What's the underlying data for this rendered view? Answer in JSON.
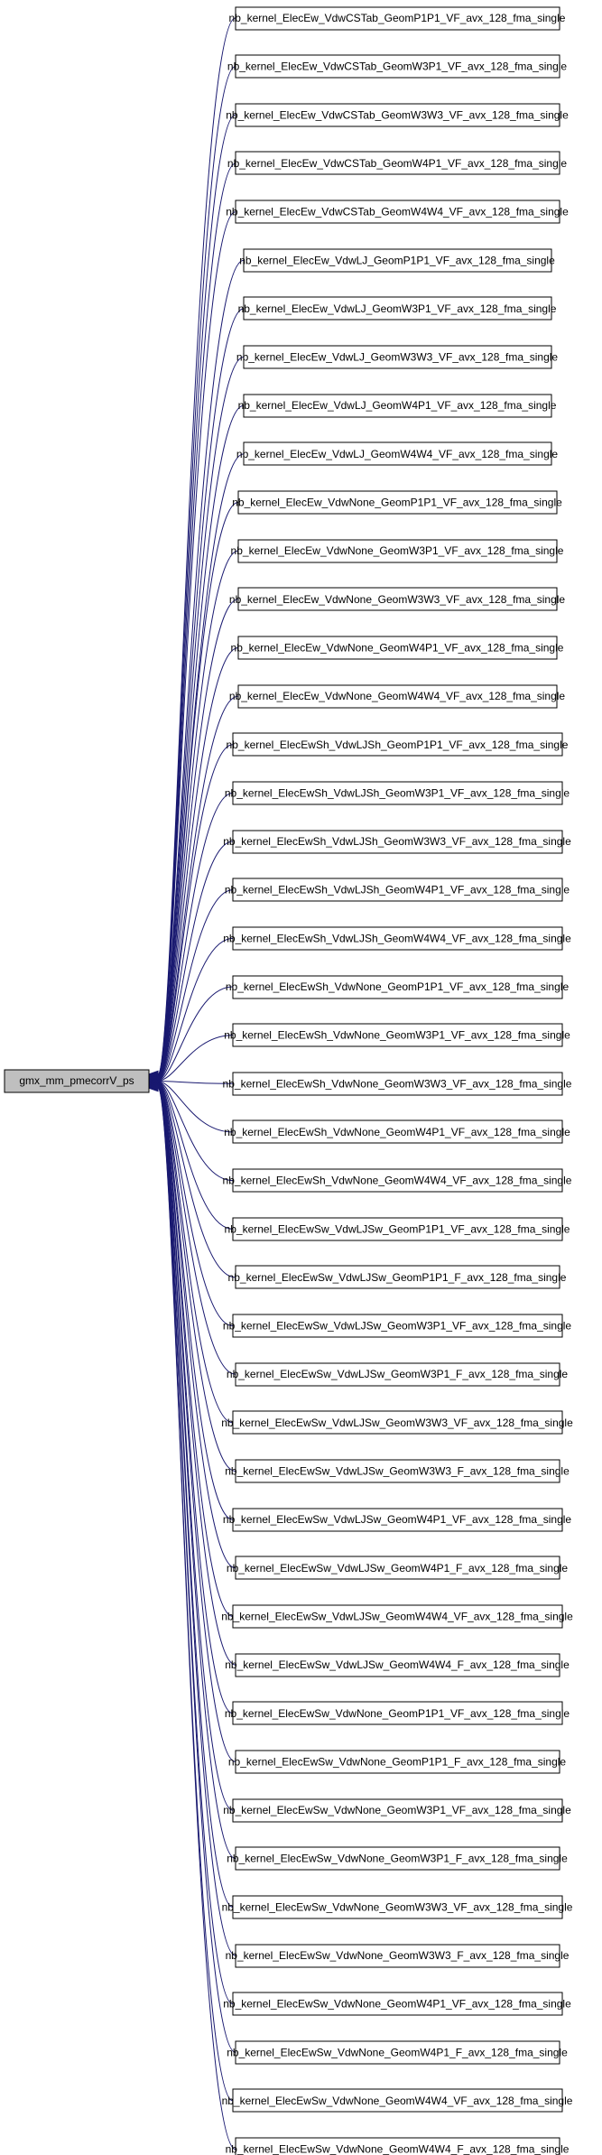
{
  "graph": {
    "root": {
      "label": "gmx_mm_pmecorrV_ps",
      "fill": "#bfbfbf"
    },
    "edge_color": "#191970",
    "callers": [
      "nb_kernel_ElecEw_VdwCSTab_GeomP1P1_VF_avx_128_fma_single",
      "nb_kernel_ElecEw_VdwCSTab_GeomW3P1_VF_avx_128_fma_single",
      "nb_kernel_ElecEw_VdwCSTab_GeomW3W3_VF_avx_128_fma_single",
      "nb_kernel_ElecEw_VdwCSTab_GeomW4P1_VF_avx_128_fma_single",
      "nb_kernel_ElecEw_VdwCSTab_GeomW4W4_VF_avx_128_fma_single",
      "nb_kernel_ElecEw_VdwLJ_GeomP1P1_VF_avx_128_fma_single",
      "nb_kernel_ElecEw_VdwLJ_GeomW3P1_VF_avx_128_fma_single",
      "nb_kernel_ElecEw_VdwLJ_GeomW3W3_VF_avx_128_fma_single",
      "nb_kernel_ElecEw_VdwLJ_GeomW4P1_VF_avx_128_fma_single",
      "nb_kernel_ElecEw_VdwLJ_GeomW4W4_VF_avx_128_fma_single",
      "nb_kernel_ElecEw_VdwNone_GeomP1P1_VF_avx_128_fma_single",
      "nb_kernel_ElecEw_VdwNone_GeomW3P1_VF_avx_128_fma_single",
      "nb_kernel_ElecEw_VdwNone_GeomW3W3_VF_avx_128_fma_single",
      "nb_kernel_ElecEw_VdwNone_GeomW4P1_VF_avx_128_fma_single",
      "nb_kernel_ElecEw_VdwNone_GeomW4W4_VF_avx_128_fma_single",
      "nb_kernel_ElecEwSh_VdwLJSh_GeomP1P1_VF_avx_128_fma_single",
      "nb_kernel_ElecEwSh_VdwLJSh_GeomW3P1_VF_avx_128_fma_single",
      "nb_kernel_ElecEwSh_VdwLJSh_GeomW3W3_VF_avx_128_fma_single",
      "nb_kernel_ElecEwSh_VdwLJSh_GeomW4P1_VF_avx_128_fma_single",
      "nb_kernel_ElecEwSh_VdwLJSh_GeomW4W4_VF_avx_128_fma_single",
      "nb_kernel_ElecEwSh_VdwNone_GeomP1P1_VF_avx_128_fma_single",
      "nb_kernel_ElecEwSh_VdwNone_GeomW3P1_VF_avx_128_fma_single",
      "nb_kernel_ElecEwSh_VdwNone_GeomW3W3_VF_avx_128_fma_single",
      "nb_kernel_ElecEwSh_VdwNone_GeomW4P1_VF_avx_128_fma_single",
      "nb_kernel_ElecEwSh_VdwNone_GeomW4W4_VF_avx_128_fma_single",
      "nb_kernel_ElecEwSw_VdwLJSw_GeomP1P1_VF_avx_128_fma_single",
      "nb_kernel_ElecEwSw_VdwLJSw_GeomP1P1_F_avx_128_fma_single",
      "nb_kernel_ElecEwSw_VdwLJSw_GeomW3P1_VF_avx_128_fma_single",
      "nb_kernel_ElecEwSw_VdwLJSw_GeomW3P1_F_avx_128_fma_single",
      "nb_kernel_ElecEwSw_VdwLJSw_GeomW3W3_VF_avx_128_fma_single",
      "nb_kernel_ElecEwSw_VdwLJSw_GeomW3W3_F_avx_128_fma_single",
      "nb_kernel_ElecEwSw_VdwLJSw_GeomW4P1_VF_avx_128_fma_single",
      "nb_kernel_ElecEwSw_VdwLJSw_GeomW4P1_F_avx_128_fma_single",
      "nb_kernel_ElecEwSw_VdwLJSw_GeomW4W4_VF_avx_128_fma_single",
      "nb_kernel_ElecEwSw_VdwLJSw_GeomW4W4_F_avx_128_fma_single",
      "nb_kernel_ElecEwSw_VdwNone_GeomP1P1_VF_avx_128_fma_single",
      "nb_kernel_ElecEwSw_VdwNone_GeomP1P1_F_avx_128_fma_single",
      "nb_kernel_ElecEwSw_VdwNone_GeomW3P1_VF_avx_128_fma_single",
      "nb_kernel_ElecEwSw_VdwNone_GeomW3P1_F_avx_128_fma_single",
      "nb_kernel_ElecEwSw_VdwNone_GeomW3W3_VF_avx_128_fma_single",
      "nb_kernel_ElecEwSw_VdwNone_GeomW3W3_F_avx_128_fma_single",
      "nb_kernel_ElecEwSw_VdwNone_GeomW4P1_VF_avx_128_fma_single",
      "nb_kernel_ElecEwSw_VdwNone_GeomW4P1_F_avx_128_fma_single",
      "nb_kernel_ElecEwSw_VdwNone_GeomW4W4_VF_avx_128_fma_single",
      "nb_kernel_ElecEwSw_VdwNone_GeomW4W4_F_avx_128_fma_single"
    ]
  }
}
